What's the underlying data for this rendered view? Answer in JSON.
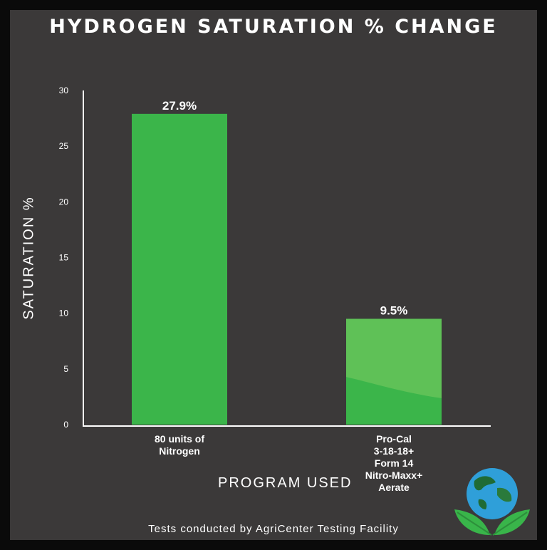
{
  "chart_data": {
    "type": "bar",
    "title": "HYDROGEN SATURATION % CHANGE",
    "ylabel": "SATURATION %",
    "xlabel": "PROGRAM USED",
    "categories": [
      [
        "80 units of",
        "Nitrogen"
      ],
      [
        "Pro-Cal",
        "3-18-18+",
        "Form 14",
        "Nitro-Maxx+",
        "Aerate"
      ]
    ],
    "values": [
      27.9,
      9.5
    ],
    "value_labels": [
      "27.9%",
      "9.5%"
    ],
    "ylim": [
      0,
      30
    ],
    "yticks": [
      "0",
      "5",
      "10",
      "15",
      "20",
      "25",
      "30"
    ],
    "grid": false,
    "bar_color": "#3bb54a",
    "bar_highlight_color": "#5fc157"
  },
  "footer": "Tests conducted by AgriCenter Testing Facility",
  "logo": {
    "icon": "globe-with-leaves-logo",
    "globe_color": "#2f9fd9",
    "leaf_color": "#39b54a"
  }
}
